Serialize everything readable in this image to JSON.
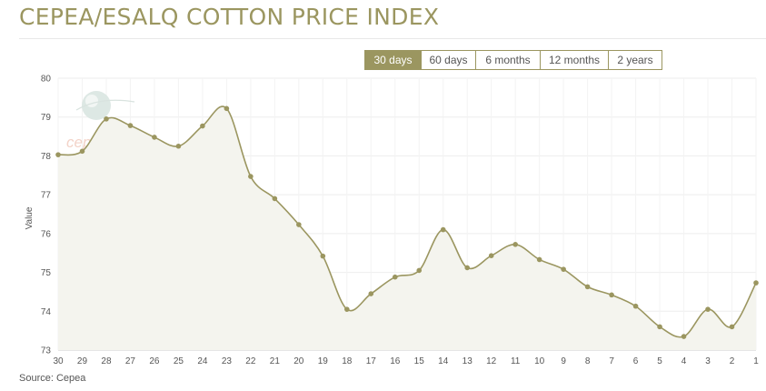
{
  "header": {
    "title": "CEPEA/ESALQ COTTON PRICE INDEX"
  },
  "range_buttons": [
    {
      "label": "30 days",
      "active": true
    },
    {
      "label": "60 days",
      "active": false
    },
    {
      "label": "6 months",
      "active": false
    },
    {
      "label": "12 months",
      "active": false
    },
    {
      "label": "2 years",
      "active": false
    }
  ],
  "watermark": {
    "text": "cepea"
  },
  "footer": {
    "source": "Source: Cepea"
  },
  "colors": {
    "accent": "#9b9660",
    "area_fill": "#f4f4ee",
    "grid": "#eeeeee"
  },
  "chart_data": {
    "type": "area",
    "categories": [
      "30",
      "29",
      "28",
      "27",
      "26",
      "25",
      "24",
      "23",
      "22",
      "21",
      "20",
      "19",
      "18",
      "17",
      "16",
      "15",
      "14",
      "13",
      "12",
      "11",
      "10",
      "9",
      "8",
      "7",
      "6",
      "5",
      "4",
      "3",
      "2",
      "1"
    ],
    "values": [
      78.03,
      78.12,
      78.95,
      78.78,
      78.48,
      78.25,
      78.77,
      79.22,
      77.47,
      76.9,
      76.23,
      75.42,
      74.05,
      74.45,
      74.88,
      75.05,
      76.1,
      75.12,
      75.43,
      75.72,
      75.33,
      75.08,
      74.63,
      74.42,
      74.13,
      73.6,
      73.35,
      74.05,
      73.6,
      74.73
    ],
    "ylabel": "Value",
    "ylim": [
      73,
      80
    ],
    "yticks": [
      "73",
      "74",
      "75",
      "76",
      "77",
      "78",
      "79",
      "80"
    ],
    "grid": true,
    "legend": "none"
  }
}
